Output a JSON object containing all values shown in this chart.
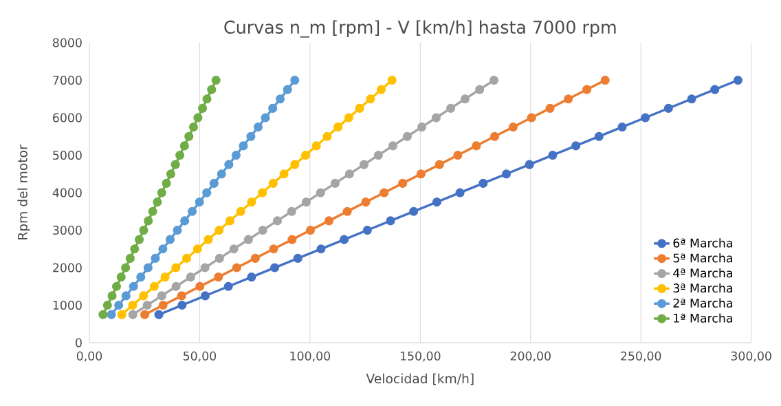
{
  "chart_data": {
    "type": "line",
    "title": "Curvas n_m [rpm] - V [km/h]   hasta 7000 rpm",
    "xlabel": "Velocidad [km/h]",
    "ylabel": "Rpm del motor",
    "xlim": [
      0,
      300
    ],
    "ylim": [
      0,
      8000
    ],
    "xticks": [
      {
        "value": 0,
        "label": "0,00"
      },
      {
        "value": 50,
        "label": "50,00"
      },
      {
        "value": 100,
        "label": "100,00"
      },
      {
        "value": 150,
        "label": "150,00"
      },
      {
        "value": 200,
        "label": "200,00"
      },
      {
        "value": 250,
        "label": "250,00"
      },
      {
        "value": 300,
        "label": "300,00"
      }
    ],
    "yticks": [
      0,
      1000,
      2000,
      3000,
      4000,
      5000,
      6000,
      7000,
      8000
    ],
    "grid": "x",
    "legend": "bottom right",
    "marker": "circle",
    "line_style": "solid",
    "series": [
      {
        "name": "6ª Marcha",
        "color": "#4472c4",
        "x": [
          31.5,
          42,
          52.5,
          63,
          73.5,
          84,
          94.5,
          105,
          115.5,
          126,
          136.5,
          147,
          157.5,
          168,
          178.5,
          189,
          199.5,
          210,
          220.5,
          231,
          241.5,
          252,
          262.5,
          273,
          283.5,
          294
        ],
        "values": [
          750,
          1000,
          1250,
          1500,
          1750,
          2000,
          2250,
          2500,
          2750,
          3000,
          3250,
          3500,
          3750,
          4000,
          4250,
          4500,
          4750,
          5000,
          5250,
          5500,
          5750,
          6000,
          6250,
          6500,
          6750,
          7000
        ]
      },
      {
        "name": "5ª Marcha",
        "color": "#ed7d31",
        "x": [
          25.1,
          33.4,
          41.8,
          50.1,
          58.5,
          66.8,
          75.2,
          83.5,
          91.9,
          100.2,
          108.6,
          116.9,
          125.3,
          133.6,
          142.0,
          150.3,
          158.7,
          167.0,
          175.4,
          183.7,
          192.1,
          200.4,
          208.8,
          217.1,
          225.5,
          233.8
        ],
        "values": [
          750,
          1000,
          1250,
          1500,
          1750,
          2000,
          2250,
          2500,
          2750,
          3000,
          3250,
          3500,
          3750,
          4000,
          4250,
          4500,
          4750,
          5000,
          5250,
          5500,
          5750,
          6000,
          6250,
          6500,
          6750,
          7000
        ]
      },
      {
        "name": "4ª Marcha",
        "color": "#a5a5a5",
        "x": [
          19.7,
          26.2,
          32.8,
          39.3,
          45.9,
          52.4,
          59.0,
          65.5,
          72.1,
          78.6,
          85.2,
          91.7,
          98.3,
          104.8,
          111.4,
          117.9,
          124.5,
          131.0,
          137.6,
          144.1,
          150.7,
          157.2,
          163.8,
          170.3,
          176.9,
          183.4
        ],
        "values": [
          750,
          1000,
          1250,
          1500,
          1750,
          2000,
          2250,
          2500,
          2750,
          3000,
          3250,
          3500,
          3750,
          4000,
          4250,
          4500,
          4750,
          5000,
          5250,
          5500,
          5750,
          6000,
          6250,
          6500,
          6750,
          7000
        ]
      },
      {
        "name": "3ª Marcha",
        "color": "#ffc000",
        "x": [
          14.7,
          19.6,
          24.5,
          29.4,
          34.3,
          39.2,
          44.1,
          49.0,
          53.9,
          58.8,
          63.7,
          68.6,
          73.5,
          78.4,
          83.3,
          88.2,
          93.1,
          98.0,
          102.9,
          107.8,
          112.7,
          117.6,
          122.5,
          127.4,
          132.3,
          137.2
        ],
        "values": [
          750,
          1000,
          1250,
          1500,
          1750,
          2000,
          2250,
          2500,
          2750,
          3000,
          3250,
          3500,
          3750,
          4000,
          4250,
          4500,
          4750,
          5000,
          5250,
          5500,
          5750,
          6000,
          6250,
          6500,
          6750,
          7000
        ]
      },
      {
        "name": "2ª Marcha",
        "color": "#5b9bd5",
        "x": [
          10.0,
          13.3,
          16.6,
          20.0,
          23.3,
          26.6,
          29.9,
          33.3,
          36.6,
          39.9,
          43.2,
          46.6,
          49.9,
          53.2,
          56.5,
          59.9,
          63.2,
          66.5,
          69.8,
          73.2,
          76.5,
          79.8,
          83.1,
          86.5,
          89.8,
          93.1
        ],
        "values": [
          750,
          1000,
          1250,
          1500,
          1750,
          2000,
          2250,
          2500,
          2750,
          3000,
          3250,
          3500,
          3750,
          4000,
          4250,
          4500,
          4750,
          5000,
          5250,
          5500,
          5750,
          6000,
          6250,
          6500,
          6750,
          7000
        ]
      },
      {
        "name": "1ª Marcha",
        "color": "#70ad47",
        "x": [
          6.2,
          8.2,
          10.3,
          12.3,
          14.4,
          16.4,
          18.5,
          20.5,
          22.6,
          24.6,
          26.7,
          28.7,
          30.8,
          32.8,
          34.9,
          36.9,
          39.0,
          41.0,
          43.1,
          45.1,
          47.2,
          49.2,
          51.3,
          53.3,
          55.4,
          57.4
        ],
        "values": [
          750,
          1000,
          1250,
          1500,
          1750,
          2000,
          2250,
          2500,
          2750,
          3000,
          3250,
          3500,
          3750,
          4000,
          4250,
          4500,
          4750,
          5000,
          5250,
          5500,
          5750,
          6000,
          6250,
          6500,
          6750,
          7000
        ]
      }
    ]
  }
}
